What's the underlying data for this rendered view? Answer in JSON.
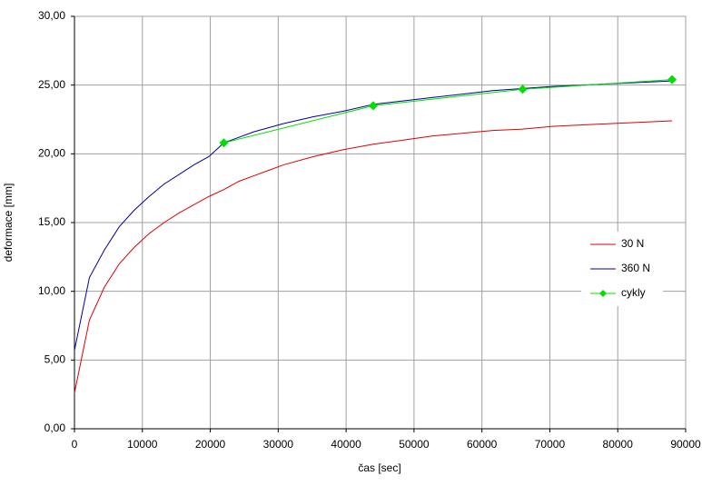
{
  "chart_data": {
    "type": "line",
    "x_label": "čas [sec]",
    "y_label": "deformace [mm]",
    "xlim": [
      0,
      90000
    ],
    "xticks": [
      0,
      10000,
      20000,
      30000,
      40000,
      50000,
      60000,
      70000,
      80000,
      90000
    ],
    "ylim": [
      0,
      30
    ],
    "yticks": [
      {
        "value": 0,
        "label": "0,00"
      },
      {
        "value": 5,
        "label": "5,00"
      },
      {
        "value": 10,
        "label": "10,00"
      },
      {
        "value": 15,
        "label": "15,00"
      },
      {
        "value": 20,
        "label": "20,00"
      },
      {
        "value": 25,
        "label": "25,00"
      },
      {
        "value": 30,
        "label": "30,00"
      }
    ],
    "grid": true,
    "legend": "right",
    "series": [
      {
        "name": "30 N",
        "color": "#e00000",
        "marker": false,
        "x": [
          0,
          2200,
          4400,
          6600,
          8800,
          11000,
          13200,
          15400,
          17600,
          19800,
          22000,
          24200,
          26400,
          28600,
          30800,
          35200,
          39600,
          44000,
          48400,
          52800,
          57200,
          61600,
          66000,
          70400,
          74800,
          79200,
          83600,
          88000
        ],
        "values": [
          2.6,
          7.9,
          10.3,
          12.0,
          13.2,
          14.2,
          15.0,
          15.7,
          16.3,
          16.9,
          17.4,
          18.0,
          18.4,
          18.8,
          19.2,
          19.8,
          20.3,
          20.7,
          21.0,
          21.3,
          21.5,
          21.7,
          21.8,
          22.0,
          22.1,
          22.2,
          22.3,
          22.4
        ]
      },
      {
        "name": "360 N",
        "color": "#0000a0",
        "marker": false,
        "x": [
          0,
          2200,
          4400,
          6600,
          8800,
          11000,
          13200,
          15400,
          17600,
          19800,
          22000,
          26400,
          30800,
          35200,
          39600,
          44000,
          52800,
          61600,
          70400,
          79200,
          88000
        ],
        "values": [
          5.7,
          11.0,
          13.0,
          14.7,
          15.9,
          16.9,
          17.8,
          18.5,
          19.2,
          19.8,
          20.8,
          21.6,
          22.2,
          22.7,
          23.1,
          23.6,
          24.1,
          24.6,
          24.9,
          25.1,
          25.3
        ]
      },
      {
        "name": "cykly",
        "color": "#00e000",
        "marker": true,
        "x": [
          22000,
          44000,
          66000,
          88000
        ],
        "values": [
          20.8,
          23.5,
          24.7,
          25.4
        ]
      }
    ]
  }
}
